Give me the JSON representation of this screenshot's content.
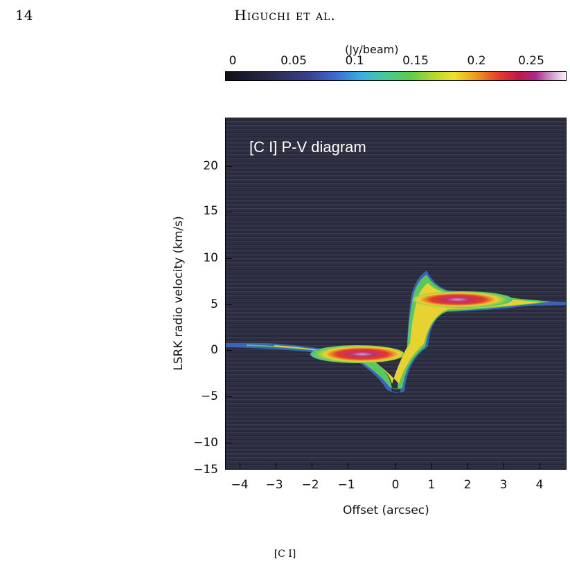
{
  "page": {
    "number": "14",
    "running_head": "Higuchi et al.",
    "caption_fragment": "[C I]"
  },
  "colorbar": {
    "unit": "(Jy/beam)",
    "ticks": [
      "0",
      "0.05",
      "0.1",
      "0.15",
      "0.2",
      "0.25"
    ],
    "range": [
      0,
      0.28
    ]
  },
  "chart_data": {
    "type": "heatmap",
    "title": "[C I] P-V diagram",
    "xlabel": "Offset (arcsec)",
    "ylabel": "LSRK radio velocity  (km/s)",
    "xlim": [
      -4.7,
      4.7
    ],
    "ylim": [
      -15,
      25
    ],
    "xticks": [
      "−4",
      "−3",
      "−2",
      "−1",
      "0",
      "1",
      "2",
      "3",
      "4"
    ],
    "yticks": [
      "20",
      "15",
      "10",
      "5",
      "0",
      "−5",
      "−10",
      "−15"
    ],
    "xtick_values": [
      -4,
      -3,
      -2,
      -1,
      0,
      1,
      2,
      3,
      4
    ],
    "ytick_values": [
      20,
      15,
      10,
      5,
      0,
      -5,
      -10,
      -15
    ],
    "features": [
      {
        "lobe": "redshifted",
        "offset_range_arcsec": [
          0.3,
          4.0
        ],
        "velocity_range_kms": [
          4.5,
          10.5
        ],
        "peak_offset_arcsec": 1.8,
        "peak_velocity_kms": 6.2,
        "peak_intensity_jy_beam": 0.27
      },
      {
        "lobe": "blueshifted",
        "offset_range_arcsec": [
          -4.7,
          -0.2
        ],
        "velocity_range_kms": [
          -4.5,
          1.0
        ],
        "peak_offset_arcsec": -1.5,
        "peak_velocity_kms": -0.8,
        "peak_intensity_jy_beam": 0.27
      }
    ]
  }
}
